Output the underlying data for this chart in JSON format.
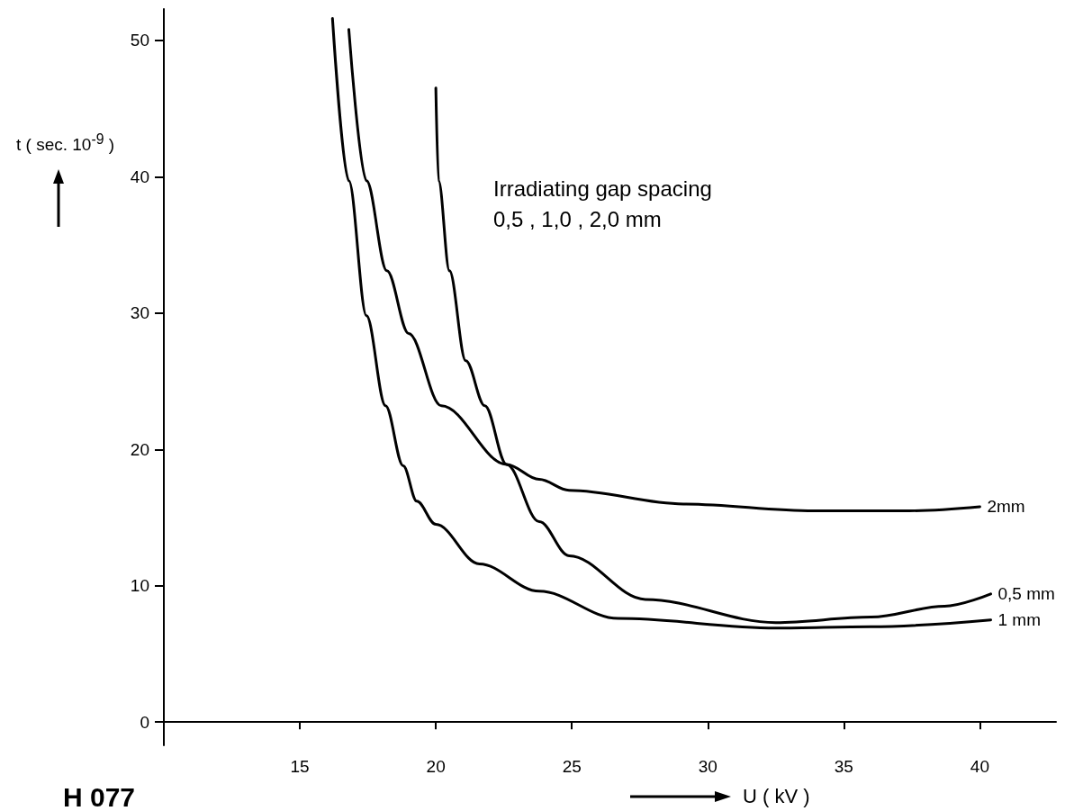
{
  "chart_data": {
    "type": "line",
    "xlabel": "U ( kV )",
    "ylabel": "t ( sec. 10$^{-9}$ )",
    "annotations": [
      "Irradiating gap spacing\n0,5 , 1,0 , 2,0 mm",
      "H 077"
    ],
    "xlim": [
      10,
      42.8
    ],
    "ylim": [
      -1.7,
      52.3
    ],
    "xticks": [
      15,
      20,
      25,
      30,
      35,
      40
    ],
    "yticks": [
      0,
      10,
      20,
      30,
      40,
      50
    ],
    "grid": false,
    "marker": "none",
    "line_style": "solid",
    "series": [
      {
        "name": "0,5 mm",
        "color": "#000000",
        "x": [
          20.0,
          20.1,
          20.5,
          21.1,
          21.8,
          22.6,
          23.8,
          24.9,
          27.7,
          32.5,
          36.0,
          38.7,
          40.4
        ],
        "values": [
          46.5,
          39.7,
          33.1,
          26.5,
          23.2,
          18.9,
          14.7,
          12.2,
          9.0,
          7.3,
          7.7,
          8.5,
          9.4
        ]
      },
      {
        "name": "1 mm",
        "color": "#000000",
        "x": [
          16.2,
          16.8,
          17.45,
          18.15,
          18.8,
          19.3,
          20.0,
          21.6,
          23.8,
          26.7,
          32.5,
          36.0,
          40.4
        ],
        "values": [
          51.6,
          39.7,
          29.8,
          23.2,
          18.8,
          16.2,
          14.5,
          11.6,
          9.6,
          7.6,
          6.9,
          7.0,
          7.5
        ]
      },
      {
        "name": "2mm",
        "color": "#000000",
        "x": [
          16.8,
          17.45,
          18.2,
          19.0,
          20.2,
          22.6,
          23.8,
          24.9,
          29.1,
          33.9,
          37.4,
          40.0
        ],
        "values": [
          50.8,
          39.7,
          33.1,
          28.5,
          23.2,
          18.9,
          17.8,
          17.0,
          16.0,
          15.5,
          15.5,
          15.8
        ]
      }
    ]
  }
}
